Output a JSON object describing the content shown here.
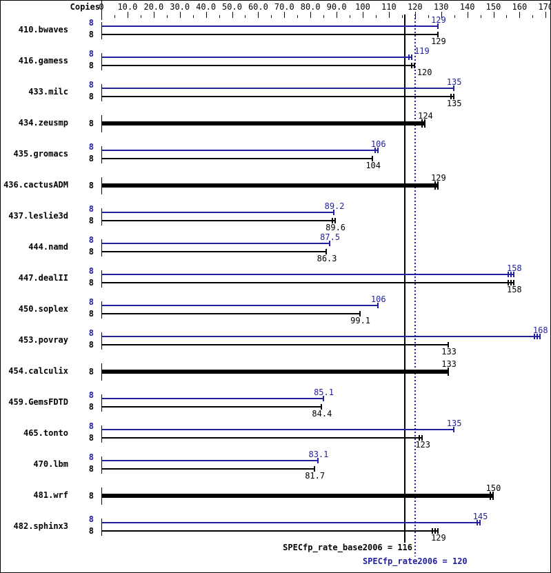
{
  "chart_data": {
    "type": "bar",
    "orientation": "horizontal",
    "copies_header": "Copies",
    "colors": {
      "peak": "#2020a0",
      "base": "#000000",
      "background": "#ffffff"
    },
    "x_axis": {
      "min": 0,
      "max": 170,
      "major_tick": 10,
      "minor_tick": 5,
      "tick_labels": [
        "0",
        "10.0",
        "20.0",
        "30.0",
        "40.0",
        "50.0",
        "60.0",
        "70.0",
        "80.0",
        "90.0",
        "100",
        "110",
        "120",
        "130",
        "140",
        "150",
        "160",
        "170"
      ]
    },
    "benchmarks": [
      {
        "name": "410.bwaves",
        "copies_peak": "8",
        "copies_base": "8",
        "peak": 129,
        "peak_label": "129",
        "peak_marks": 1,
        "base": 129,
        "base_label": "129",
        "base_marks": 1,
        "merged": false
      },
      {
        "name": "416.gamess",
        "copies_peak": "8",
        "copies_base": "8",
        "peak": 119,
        "peak_label": "119",
        "peak_marks": 2,
        "base": 120,
        "base_label": "120",
        "base_marks": 2,
        "merged": false
      },
      {
        "name": "433.milc",
        "copies_peak": "8",
        "copies_base": "8",
        "peak": 135,
        "peak_label": "135",
        "peak_marks": 1,
        "base": 135,
        "base_label": "135",
        "base_marks": 2,
        "merged": false
      },
      {
        "name": "434.zeusmp",
        "copies_base": "8",
        "base": 124,
        "base_label": "124",
        "base_marks": 2,
        "merged": true
      },
      {
        "name": "435.gromacs",
        "copies_peak": "8",
        "copies_base": "8",
        "peak": 106,
        "peak_label": "106",
        "peak_marks": 2,
        "base": 104,
        "base_label": "104",
        "base_marks": 1,
        "merged": false
      },
      {
        "name": "436.cactusADM",
        "copies_base": "8",
        "base": 129,
        "base_label": "129",
        "base_marks": 2,
        "merged": true
      },
      {
        "name": "437.leslie3d",
        "copies_peak": "8",
        "copies_base": "8",
        "peak": 89.2,
        "peak_label": "89.2",
        "peak_marks": 1,
        "base": 89.6,
        "base_label": "89.6",
        "base_marks": 2,
        "merged": false
      },
      {
        "name": "444.namd",
        "copies_peak": "8",
        "copies_base": "8",
        "peak": 87.5,
        "peak_label": "87.5",
        "peak_marks": 1,
        "base": 86.3,
        "base_label": "86.3",
        "base_marks": 1,
        "merged": false
      },
      {
        "name": "447.dealII",
        "copies_peak": "8",
        "copies_base": "8",
        "peak": 158,
        "peak_label": "158",
        "peak_marks": 3,
        "base": 158,
        "base_label": "158",
        "base_marks": 3,
        "merged": false
      },
      {
        "name": "450.soplex",
        "copies_peak": "8",
        "copies_base": "8",
        "peak": 106,
        "peak_label": "106",
        "peak_marks": 1,
        "base": 99.1,
        "base_label": "99.1",
        "base_marks": 1,
        "merged": false
      },
      {
        "name": "453.povray",
        "copies_peak": "8",
        "copies_base": "8",
        "peak": 168,
        "peak_label": "168",
        "peak_marks": 3,
        "base": 133,
        "base_label": "133",
        "base_marks": 1,
        "merged": false
      },
      {
        "name": "454.calculix",
        "copies_base": "8",
        "base": 133,
        "base_label": "133",
        "base_marks": 1,
        "merged": true
      },
      {
        "name": "459.GemsFDTD",
        "copies_peak": "8",
        "copies_base": "8",
        "peak": 85.1,
        "peak_label": "85.1",
        "peak_marks": 1,
        "base": 84.4,
        "base_label": "84.4",
        "base_marks": 1,
        "merged": false
      },
      {
        "name": "465.tonto",
        "copies_peak": "8",
        "copies_base": "8",
        "peak": 135,
        "peak_label": "135",
        "peak_marks": 1,
        "base": 123,
        "base_label": "123",
        "base_marks": 2,
        "merged": false
      },
      {
        "name": "470.lbm",
        "copies_peak": "8",
        "copies_base": "8",
        "peak": 83.1,
        "peak_label": "83.1",
        "peak_marks": 1,
        "base": 81.7,
        "base_label": "81.7",
        "base_marks": 1,
        "merged": false
      },
      {
        "name": "481.wrf",
        "copies_base": "8",
        "base": 150,
        "base_label": "150",
        "base_marks": 2,
        "merged": true
      },
      {
        "name": "482.sphinx3",
        "copies_peak": "8",
        "copies_base": "8",
        "peak": 145,
        "peak_label": "145",
        "peak_marks": 2,
        "base": 129,
        "base_label": "129",
        "base_marks": 3,
        "merged": false
      }
    ],
    "reference_lines": [
      {
        "name": "SPECfp_rate_base2006",
        "value": 116,
        "label": "SPECfp_rate_base2006 = 116",
        "style": "solid",
        "color": "#000000"
      },
      {
        "name": "SPECfp_rate2006",
        "value": 120,
        "label": "SPECfp_rate2006 = 120",
        "style": "dotted",
        "color": "#2020a0"
      }
    ]
  }
}
